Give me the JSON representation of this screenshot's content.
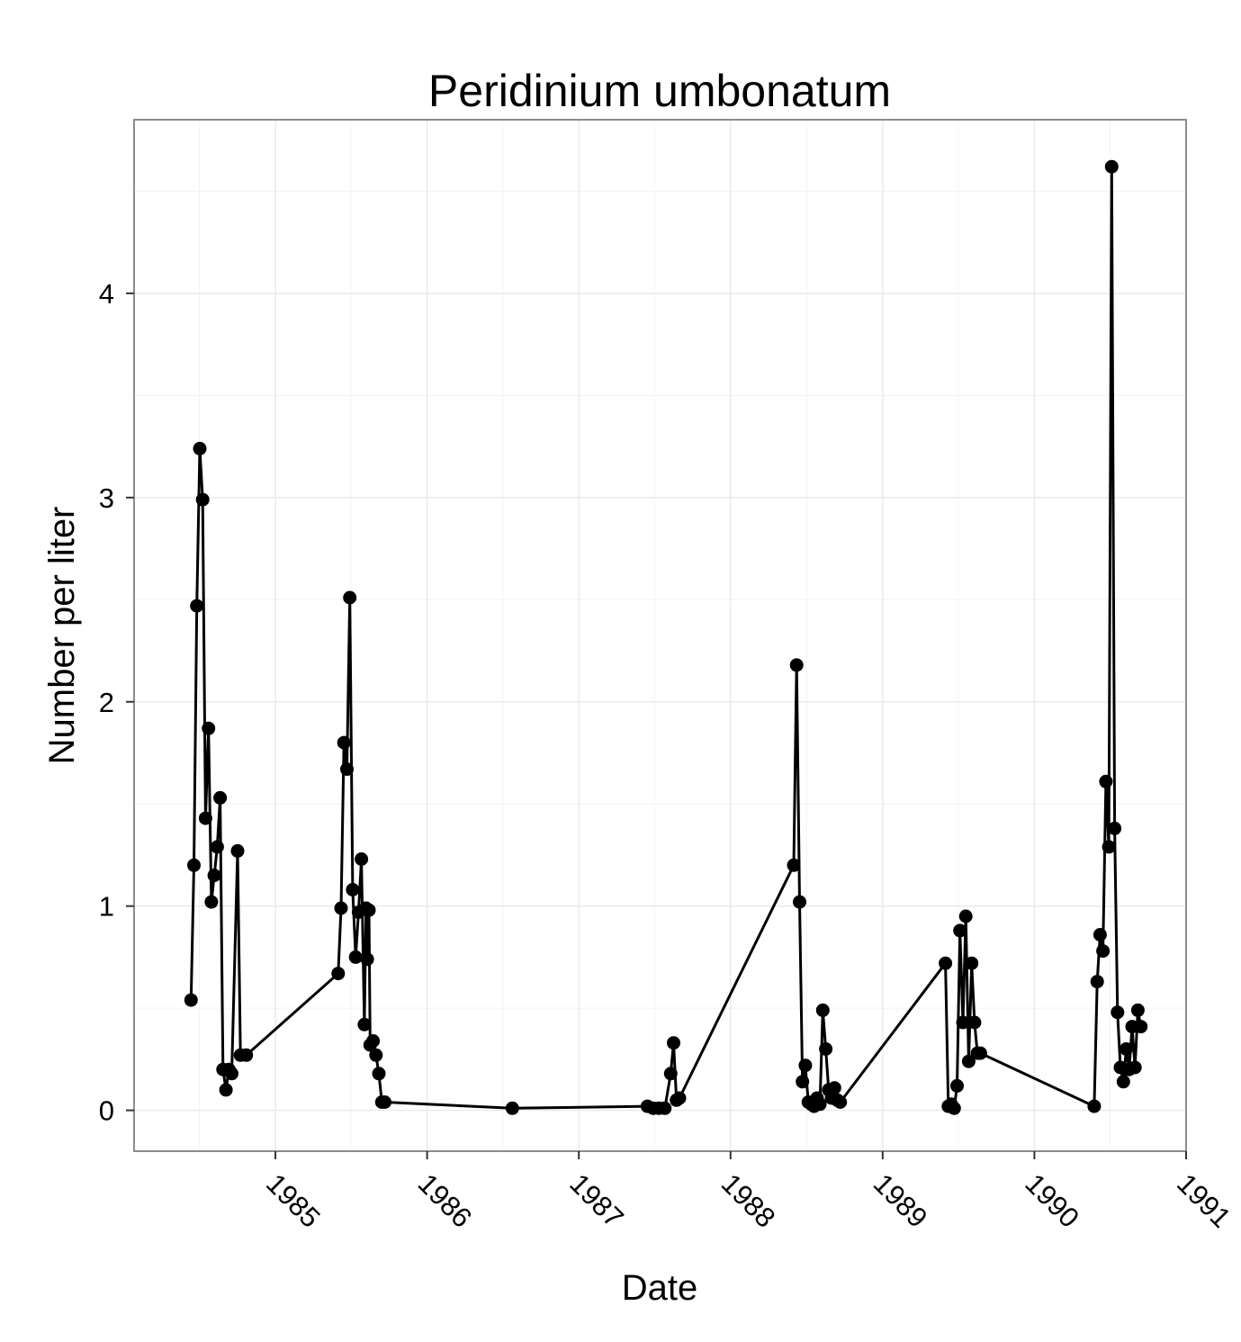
{
  "chart_data": {
    "type": "line",
    "title": "Peridinium umbonatum",
    "xlabel": "Date",
    "ylabel": "Number per liter",
    "x_is_date": true,
    "xlim": [
      "1984-01-27",
      "1991-01-01"
    ],
    "ylim": [
      -0.2,
      4.85
    ],
    "x_ticks": [
      "1985",
      "1986",
      "1987",
      "1988",
      "1989",
      "1990",
      "1991"
    ],
    "y_ticks": [
      0,
      1,
      2,
      3,
      4
    ],
    "grid": true,
    "legend": "none",
    "colors": {
      "line": "#000000",
      "points": "#000000",
      "panel_border": "#8c8c8c",
      "grid": "#ebebeb"
    },
    "series": [
      {
        "x": [
          "1984-06-12",
          "1984-06-19",
          "1984-06-26",
          "1984-07-03",
          "1984-07-10",
          "1984-07-17",
          "1984-07-24",
          "1984-07-31",
          "1984-08-07",
          "1984-08-14",
          "1984-08-21",
          "1984-08-28",
          "1984-09-04",
          "1984-09-11",
          "1984-09-18",
          "1984-10-02",
          "1984-10-09",
          "1984-10-23",
          "1985-06-01",
          "1985-06-08",
          "1985-06-15",
          "1985-06-22",
          "1985-06-29",
          "1985-07-06",
          "1985-07-13",
          "1985-07-20",
          "1985-07-27",
          "1985-08-03",
          "1985-08-07",
          "1985-08-10",
          "1985-08-14",
          "1985-08-17",
          "1985-08-24",
          "1985-08-31",
          "1985-09-07",
          "1985-09-14",
          "1985-09-21",
          "1986-07-25",
          "1987-06-15",
          "1987-06-29",
          "1987-07-13",
          "1987-07-27",
          "1987-08-10",
          "1987-08-17",
          "1987-08-24",
          "1987-08-31",
          "1988-06-01",
          "1988-06-08",
          "1988-06-15",
          "1988-06-22",
          "1988-06-29",
          "1988-07-06",
          "1988-07-13",
          "1988-07-20",
          "1988-07-27",
          "1988-08-03",
          "1988-08-10",
          "1988-08-17",
          "1988-08-24",
          "1988-08-31",
          "1988-09-07",
          "1988-09-14",
          "1988-09-21",
          "1989-06-01",
          "1989-06-08",
          "1989-06-15",
          "1989-06-22",
          "1989-06-29",
          "1989-07-06",
          "1989-07-13",
          "1989-07-20",
          "1989-07-27",
          "1989-08-03",
          "1989-08-10",
          "1989-08-17",
          "1989-08-24",
          "1990-05-25",
          "1990-06-01",
          "1990-06-08",
          "1990-06-15",
          "1990-06-22",
          "1990-06-29",
          "1990-07-06",
          "1990-07-13",
          "1990-07-20",
          "1990-07-27",
          "1990-08-03",
          "1990-08-10",
          "1990-08-17",
          "1990-08-24",
          "1990-08-31",
          "1990-09-07",
          "1990-09-14"
        ],
        "values": [
          0.54,
          1.2,
          2.47,
          3.24,
          2.99,
          1.43,
          1.87,
          1.02,
          1.15,
          1.29,
          1.53,
          0.2,
          0.1,
          0.2,
          0.18,
          1.27,
          0.27,
          0.27,
          0.67,
          0.99,
          1.8,
          1.67,
          2.51,
          1.08,
          0.75,
          0.97,
          1.23,
          0.42,
          0.99,
          0.74,
          0.98,
          0.32,
          0.34,
          0.27,
          0.18,
          0.04,
          0.04,
          0.01,
          0.02,
          0.01,
          0.01,
          0.01,
          0.18,
          0.33,
          0.05,
          0.06,
          1.2,
          2.18,
          1.02,
          0.14,
          0.22,
          0.04,
          0.03,
          0.02,
          0.06,
          0.03,
          0.49,
          0.3,
          0.1,
          0.06,
          0.11,
          0.05,
          0.04,
          0.72,
          0.02,
          0.03,
          0.01,
          0.12,
          0.88,
          0.43,
          0.95,
          0.24,
          0.72,
          0.43,
          0.28,
          0.28,
          0.02,
          0.63,
          0.86,
          0.78,
          1.61,
          1.29,
          4.62,
          1.38,
          0.48,
          0.21,
          0.14,
          0.3,
          0.2,
          0.41,
          0.21,
          0.49,
          0.41
        ]
      }
    ]
  }
}
